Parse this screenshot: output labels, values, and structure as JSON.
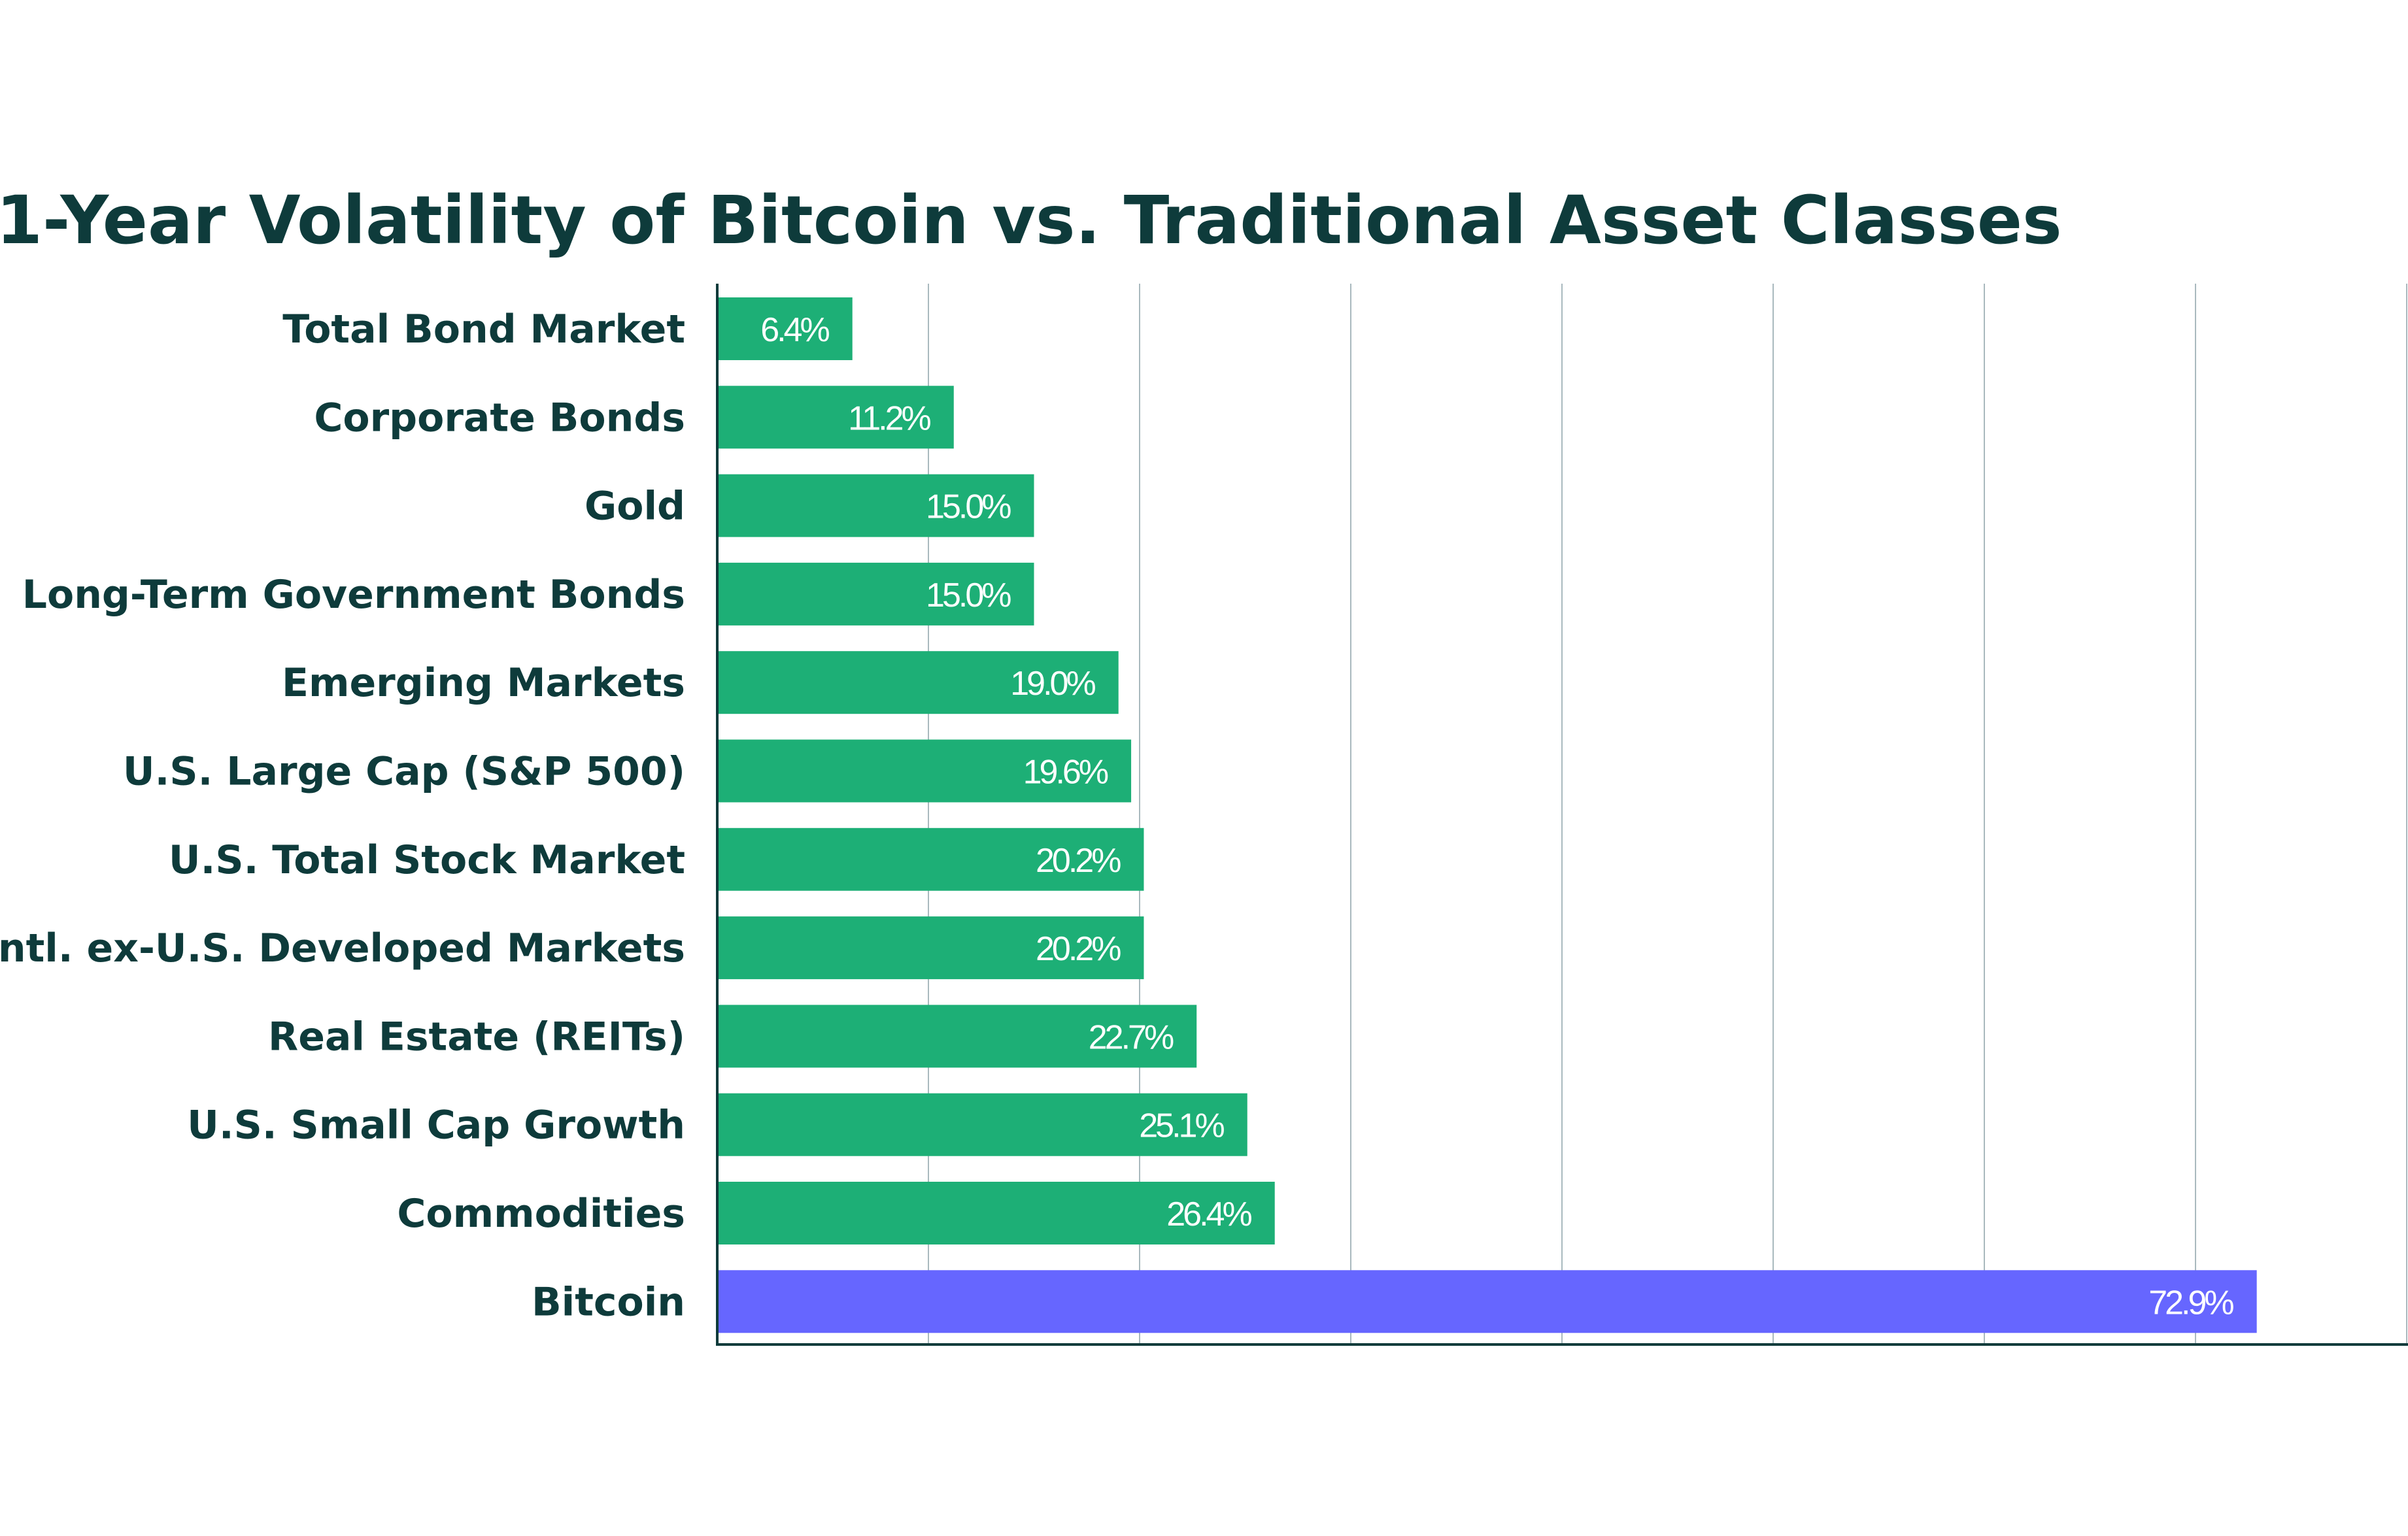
{
  "chart_data": {
    "type": "bar",
    "orientation": "horizontal",
    "title": "1-Year Volatility of Bitcoin vs. Traditional Asset Classes",
    "xlabel": "",
    "ylabel": "",
    "xlim": [
      0,
      80
    ],
    "grid": true,
    "value_suffix": "%",
    "categories": [
      "Total Bond Market",
      "Corporate Bonds",
      "Gold",
      "Long-Term Government Bonds",
      "Emerging Markets",
      "U.S. Large Cap (S&P 500)",
      "U.S. Total Stock Market",
      "Intl. ex-U.S. Developed Markets",
      "Real Estate (REITs)",
      "U.S. Small Cap Growth",
      "Commodities",
      "Bitcoin"
    ],
    "values": [
      6.4,
      11.2,
      15.0,
      15.0,
      19.0,
      19.6,
      20.2,
      20.2,
      22.7,
      25.1,
      26.4,
      72.9
    ],
    "value_labels": [
      "6.4%",
      "11.2%",
      "15.0%",
      "15.0%",
      "19.0%",
      "19.6%",
      "20.2%",
      "20.2%",
      "22.7%",
      "25.1%",
      "26.4%",
      "72.9%"
    ],
    "colors": {
      "default_bar": "#1daf76",
      "highlight_bar": "#6666ff",
      "highlight_category": "Bitcoin",
      "title": "#0e3b3b",
      "label": "#0e3b3b",
      "gridline": "#a9b9be",
      "axis": "#0e3b3b"
    }
  }
}
